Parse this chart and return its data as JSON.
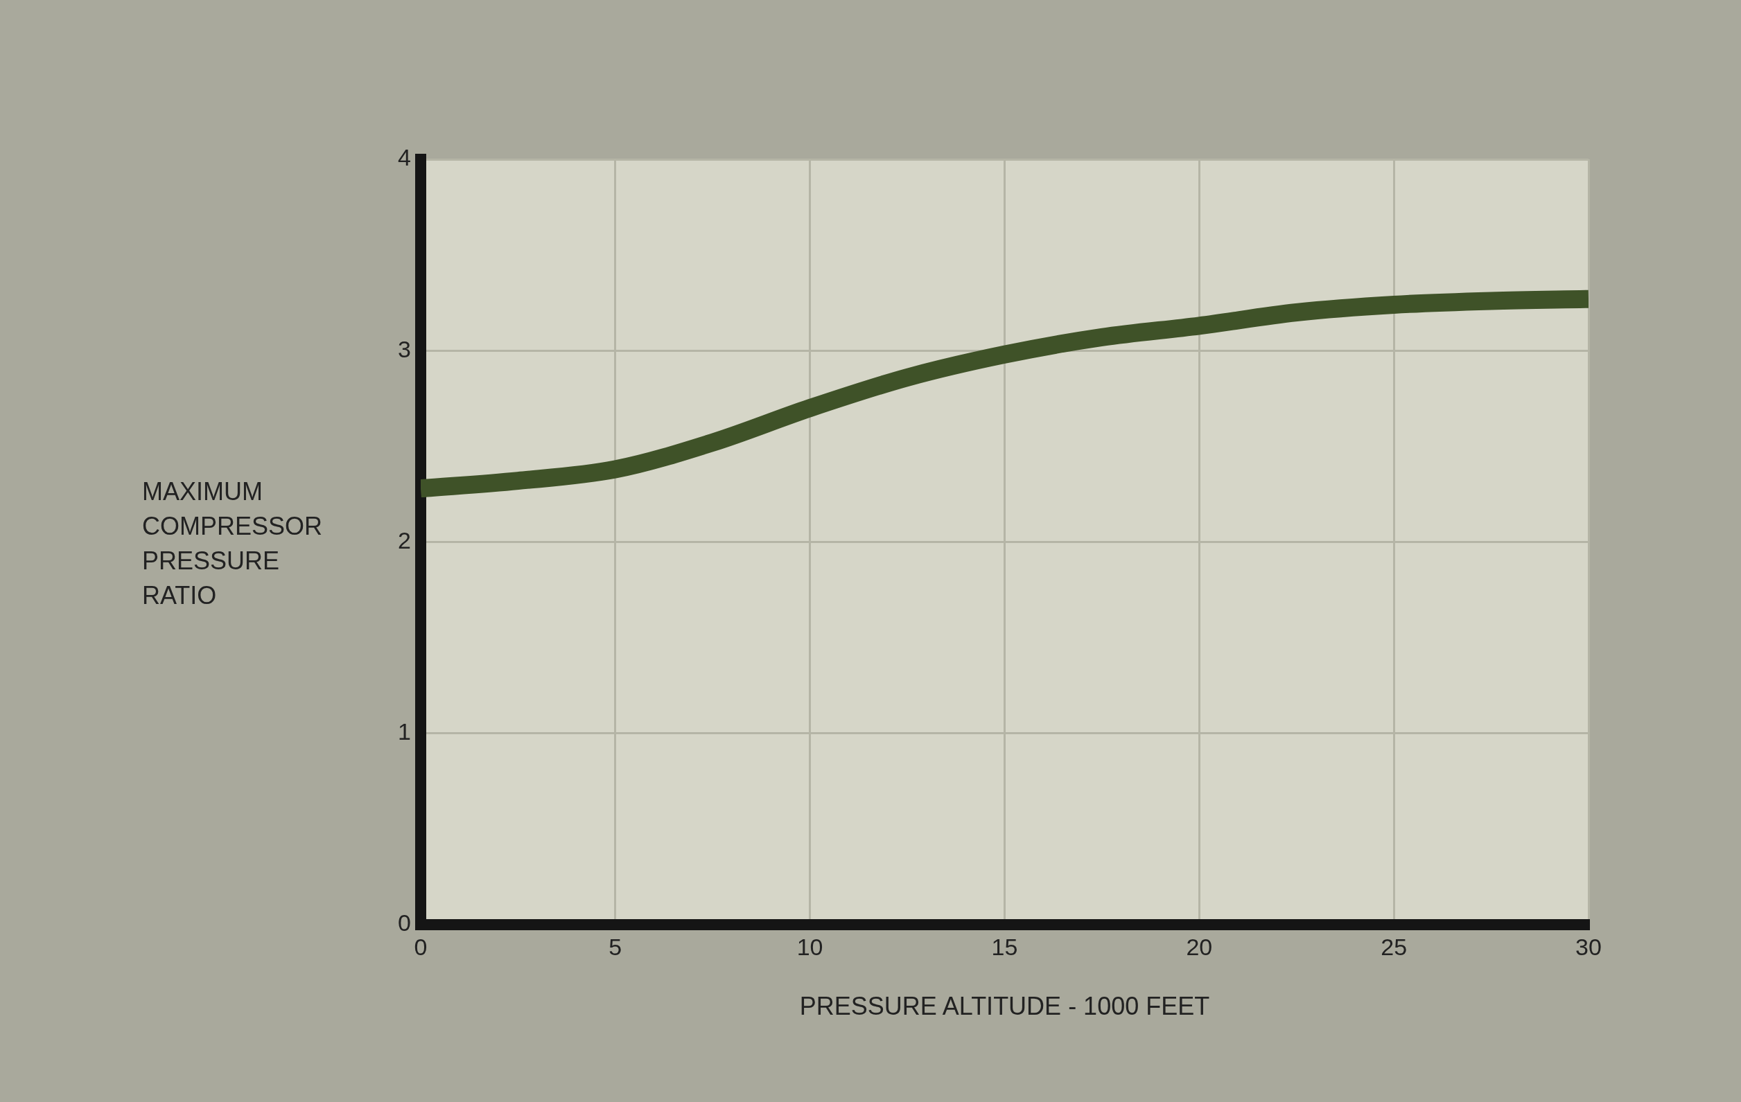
{
  "chart_data": {
    "type": "line",
    "xlabel": "PRESSURE ALTITUDE - 1000 FEET",
    "ylabel": "MAXIMUM COMPRESSOR PRESSURE RATIO",
    "x": [
      0,
      2.5,
      5,
      7.5,
      10,
      12.5,
      15,
      17.5,
      20,
      22.5,
      25,
      27.5,
      30
    ],
    "series": [
      {
        "color": "#3f5228",
        "values": [
          2.28,
          2.32,
          2.38,
          2.52,
          2.7,
          2.86,
          2.98,
          3.07,
          3.13,
          3.2,
          3.24,
          3.26,
          3.27
        ]
      }
    ],
    "xlim": [
      0,
      30
    ],
    "xticks": [
      0,
      5,
      10,
      15,
      20,
      25,
      30
    ],
    "ylim": [
      0,
      4
    ],
    "yticks": [
      0,
      1,
      2,
      3,
      4
    ],
    "grid": true,
    "legend": false,
    "marker": "none",
    "line_style": "solid"
  }
}
